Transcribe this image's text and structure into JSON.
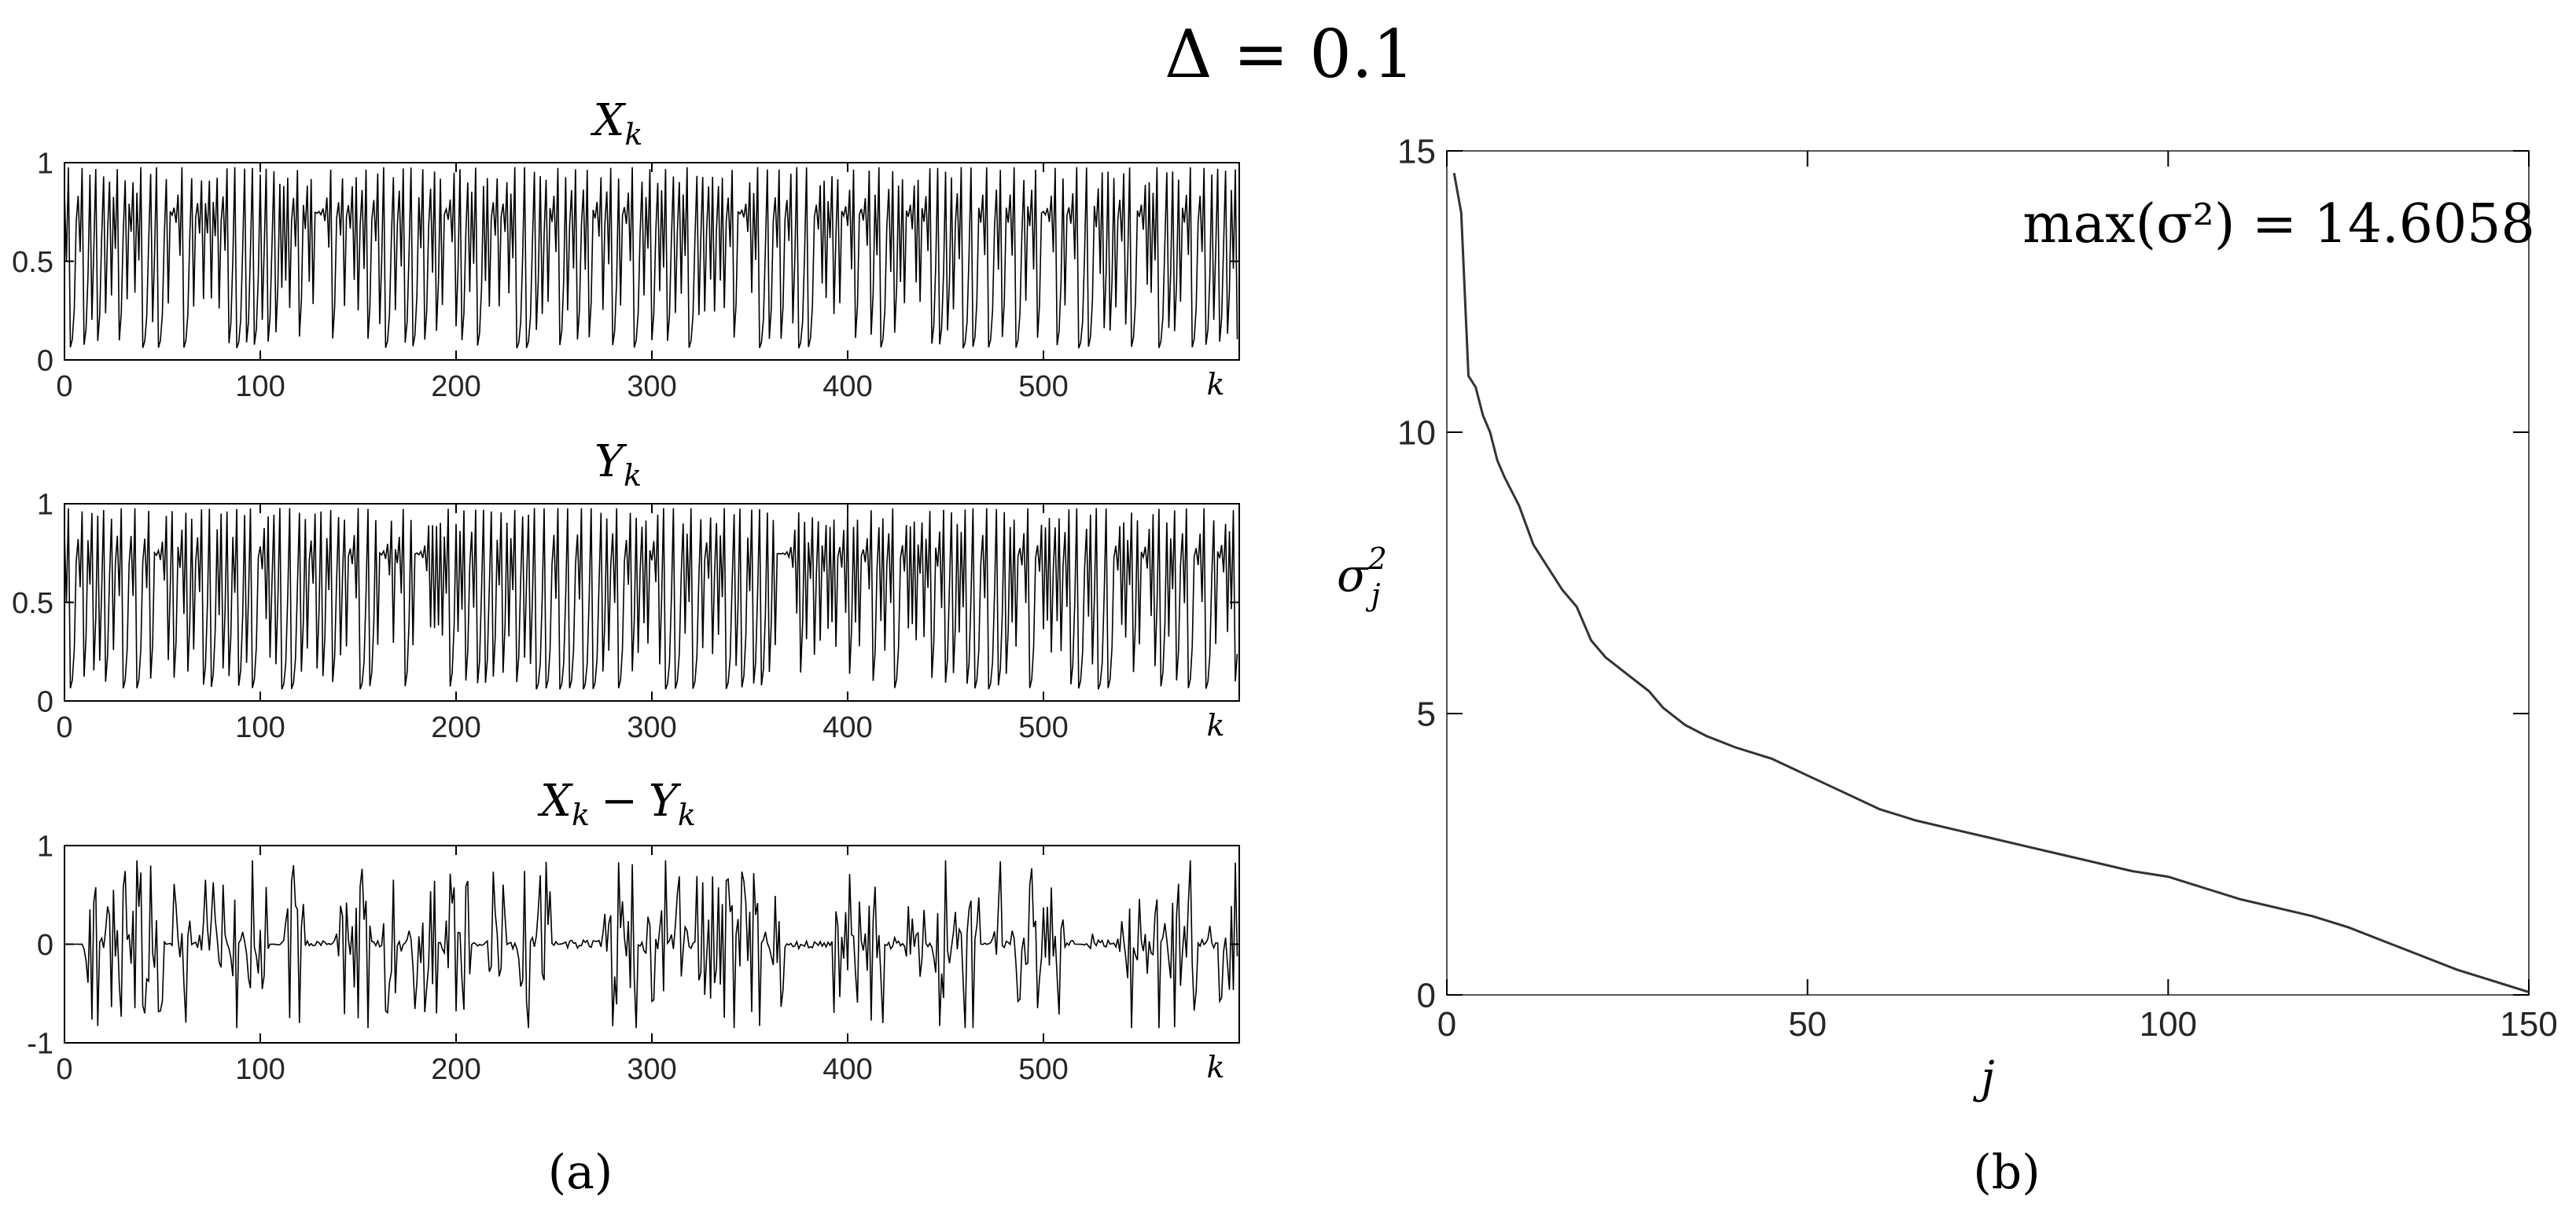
{
  "figure": {
    "title": "Δ = 0.1",
    "caption_a": "(a)",
    "caption_b": "(b)"
  },
  "chart_data": [
    {
      "type": "line",
      "panel": "a-1",
      "title_var": "X",
      "title_sub": "k",
      "xlabel": "k",
      "xlim": [
        0,
        600
      ],
      "ylim": [
        0,
        1
      ],
      "xticks": [
        0,
        100,
        200,
        300,
        400,
        500
      ],
      "yticks": [
        0,
        0.5,
        1
      ],
      "n_points": 600,
      "value_range": [
        0.05,
        0.98
      ],
      "series": [
        {
          "color": "#000000"
        }
      ]
    },
    {
      "type": "line",
      "panel": "a-2",
      "title_var": "Y",
      "title_sub": "k",
      "xlabel": "k",
      "xlim": [
        0,
        600
      ],
      "ylim": [
        0,
        1
      ],
      "xticks": [
        0,
        100,
        200,
        300,
        400,
        500
      ],
      "yticks": [
        0,
        0.5,
        1
      ],
      "n_points": 600,
      "value_range": [
        0.05,
        0.98
      ],
      "series": [
        {
          "color": "#000000"
        }
      ]
    },
    {
      "type": "line",
      "panel": "a-3",
      "title_var": "X",
      "title_sub": "k",
      "title_op": "−",
      "title_var2": "Y",
      "title_sub2": "k",
      "xlabel": "k",
      "xlim": [
        0,
        600
      ],
      "ylim": [
        -1,
        1
      ],
      "xticks": [
        0,
        100,
        200,
        300,
        400,
        500
      ],
      "yticks": [
        -1,
        0,
        1
      ],
      "n_points": 600,
      "value_range": [
        -0.85,
        0.85
      ],
      "series": [
        {
          "color": "#000000"
        }
      ]
    },
    {
      "type": "line",
      "panel": "b",
      "xlabel": "j",
      "ylabel_var": "σ",
      "ylabel_sup": "2",
      "ylabel_sub": "j",
      "xlim": [
        0,
        150
      ],
      "ylim": [
        0,
        15
      ],
      "xticks": [
        0,
        50,
        100,
        150
      ],
      "yticks": [
        0,
        5,
        10,
        15
      ],
      "annotation_text": "max(σ²) = 14.6058",
      "max_value": 14.6058,
      "x": [
        1,
        2,
        3,
        4,
        5,
        6,
        7,
        8,
        10,
        12,
        14,
        16,
        18,
        20,
        22,
        25,
        28,
        30,
        33,
        36,
        40,
        45,
        50,
        55,
        60,
        65,
        70,
        75,
        80,
        85,
        90,
        95,
        100,
        105,
        110,
        115,
        120,
        125,
        130,
        135,
        140,
        145,
        150
      ],
      "y": [
        14.6058,
        13.9,
        11.0,
        10.8,
        10.3,
        10.0,
        9.5,
        9.2,
        8.7,
        8.0,
        7.6,
        7.2,
        6.9,
        6.3,
        6.0,
        5.7,
        5.4,
        5.1,
        4.8,
        4.6,
        4.4,
        4.2,
        3.9,
        3.6,
        3.3,
        3.1,
        2.95,
        2.8,
        2.65,
        2.5,
        2.35,
        2.2,
        2.1,
        1.9,
        1.7,
        1.55,
        1.4,
        1.2,
        0.95,
        0.7,
        0.45,
        0.25,
        0.05
      ],
      "series": [
        {
          "color": "#333333"
        }
      ]
    }
  ]
}
